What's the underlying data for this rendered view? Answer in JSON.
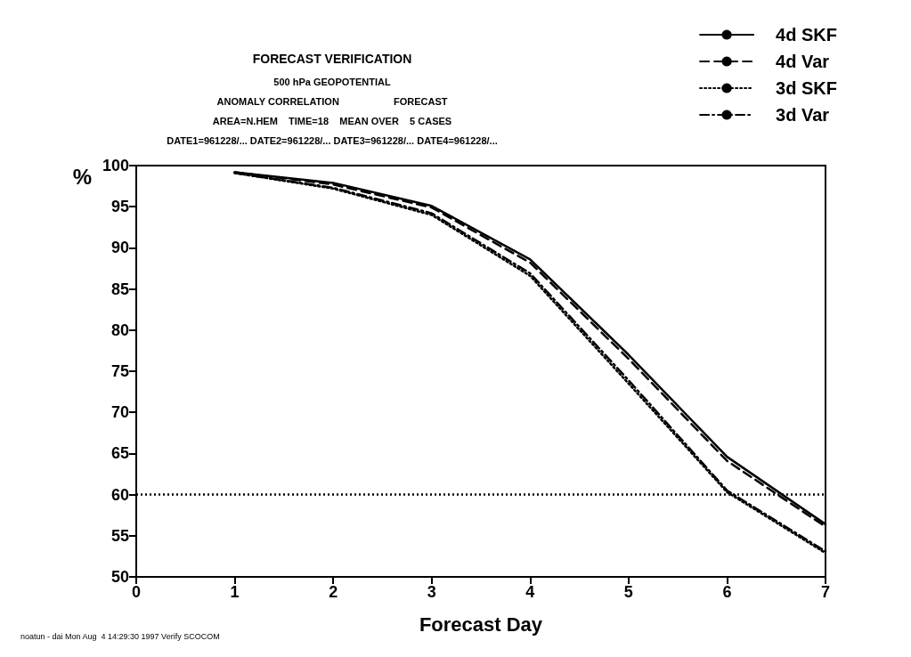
{
  "chart_data": {
    "type": "line",
    "title": "FORECAST VERIFICATION",
    "subtitle": "500 hPa GEOPOTENTIAL\nANOMALY CORRELATION                    FORECAST\nAREA=N.HEM    TIME=18    MEAN OVER    5 CASES\nDATE1=961228/... DATE2=961228/... DATE3=961228/... DATE4=961228/...",
    "xlabel": "Forecast Day",
    "ylabel": "%",
    "x": [
      1,
      2,
      3,
      4,
      5,
      6,
      7
    ],
    "series": [
      {
        "name": "4d SKF",
        "color": "#000000",
        "line_style": "solid",
        "values": [
          99.2,
          97.9,
          95.1,
          88.6,
          77,
          64.6,
          56.4
        ]
      },
      {
        "name": "4d Var",
        "color": "#000000",
        "line_style": "dashed",
        "values": [
          99.2,
          97.7,
          94.9,
          88.2,
          76.5,
          64.1,
          56.1
        ]
      },
      {
        "name": "3d SKF",
        "color": "#000000",
        "line_style": "dotted",
        "values": [
          99.1,
          97.2,
          94,
          86.6,
          73.5,
          60.3,
          52.9
        ]
      },
      {
        "name": "3d Var",
        "color": "#000000",
        "line_style": "dashdot",
        "values": [
          99.1,
          97.3,
          94.2,
          86.9,
          73.9,
          60.5,
          53.1
        ]
      }
    ],
    "xlim": [
      0,
      7
    ],
    "xticks": [
      0,
      1,
      2,
      3,
      4,
      5,
      6,
      7
    ],
    "ylim": [
      50,
      100
    ],
    "yticks": [
      50,
      55,
      60,
      65,
      70,
      75,
      80,
      85,
      90,
      95,
      100
    ],
    "ref_lines": [
      {
        "axis": "y",
        "value": 60,
        "label": null,
        "color": "#000000",
        "line_style": "dotted"
      }
    ],
    "grid": false,
    "legend": "top right",
    "marker": "none",
    "annotations": [
      "noatun - dai Mon Aug  4 14:29:30 1997 Verify SCOCOM"
    ]
  }
}
